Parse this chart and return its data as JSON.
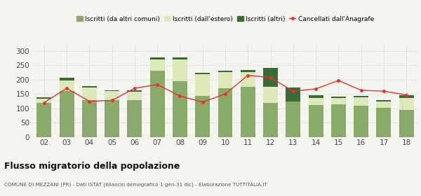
{
  "years": [
    "02",
    "03",
    "04",
    "05",
    "06",
    "07",
    "08",
    "09",
    "10",
    "11",
    "12",
    "13",
    "14",
    "15",
    "16",
    "17",
    "18"
  ],
  "iscritti_comuni": [
    118,
    160,
    128,
    128,
    128,
    232,
    195,
    143,
    170,
    175,
    120,
    125,
    112,
    115,
    110,
    103,
    95
  ],
  "iscritti_estero": [
    15,
    38,
    45,
    33,
    30,
    38,
    75,
    75,
    55,
    50,
    55,
    0,
    25,
    22,
    28,
    22,
    42
  ],
  "iscritti_altri": [
    5,
    8,
    5,
    3,
    5,
    8,
    8,
    5,
    5,
    8,
    65,
    47,
    8,
    5,
    5,
    5,
    8
  ],
  "cancellati": [
    120,
    170,
    125,
    128,
    170,
    183,
    143,
    122,
    150,
    215,
    207,
    160,
    168,
    197,
    163,
    160,
    147
  ],
  "color_comuni": "#8aaa6a",
  "color_estero": "#dde8bb",
  "color_altri": "#3a6b35",
  "color_cancellati": "#e83030",
  "bg_color": "#f5f5f0",
  "grid_color": "#cccccc",
  "title": "Flusso migratorio della popolazione",
  "subtitle": "COMUNE DI MEZZANI (PR) - Dati ISTAT (bilancio demografico 1 gen-31 dic) - Elaborazione TUTTITALIA.IT",
  "legend_labels": [
    "Iscritti (da altri comuni)",
    "Iscritti (dall'estero)",
    "Iscritti (altri)",
    "Cancellati dall'Anagrafe"
  ],
  "ylim": [
    0,
    320
  ],
  "yticks": [
    0,
    50,
    100,
    150,
    200,
    250,
    300
  ]
}
